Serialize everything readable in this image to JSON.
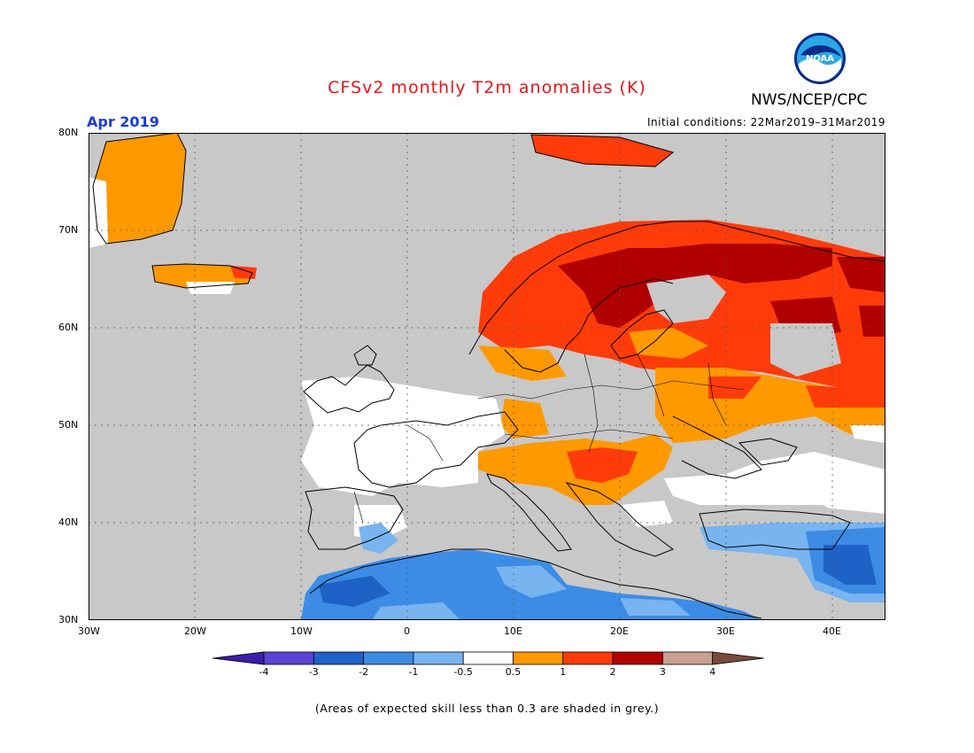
{
  "header": {
    "title": "CFSv2 monthly T2m anomalies (K)",
    "agency": "NWS/NCEP/CPC",
    "logo_text": "NOAA",
    "month": "Apr 2019",
    "initial_conditions": "Initial conditions: 22Mar2019–31Mar2019"
  },
  "map": {
    "region": "Europe",
    "lat_range": [
      30,
      80
    ],
    "lon_range": [
      -30,
      45
    ],
    "lat_labels": [
      "80N",
      "70N",
      "60N",
      "50N",
      "40N",
      "30N"
    ],
    "lon_labels": [
      "30W",
      "20W",
      "10W",
      "0",
      "10E",
      "20E",
      "30E",
      "40E"
    ],
    "skill_mask_color": "#c8c8c8"
  },
  "colorbar": {
    "boundaries": [
      "-4",
      "-3",
      "-2",
      "-1",
      "-0.5",
      "0.5",
      "1",
      "2",
      "3",
      "4"
    ],
    "colors": [
      "#3a1fa8",
      "#5b44d6",
      "#1e62c8",
      "#3c8ce6",
      "#78b4f0",
      "#ffffff",
      "#ff9900",
      "#ff3b0a",
      "#b00000",
      "#c8a090",
      "#7a4a3a"
    ]
  },
  "footer": {
    "note": "(Areas of expected skill less than 0.3 are shaded in grey.)"
  }
}
